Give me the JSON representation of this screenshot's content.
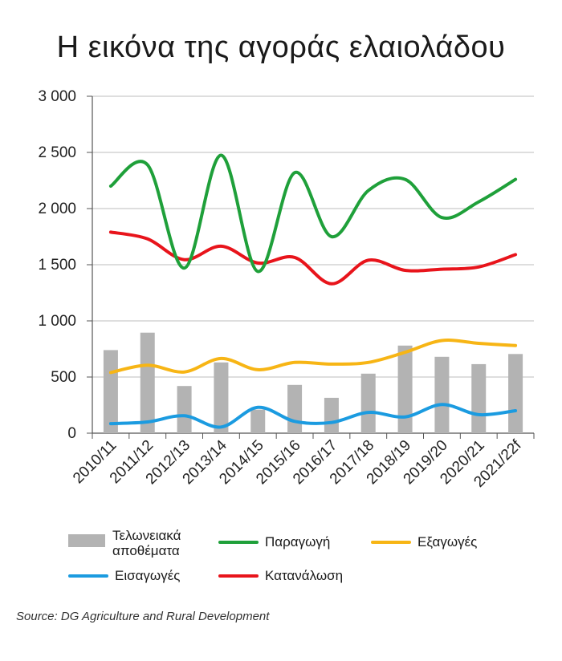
{
  "chart_data": {
    "type": "bar+line",
    "title": "Η εικόνα της αγοράς ελαιολάδου",
    "categories": [
      "2010/11",
      "2011/12",
      "2012/13",
      "2013/14",
      "2014/15",
      "2015/16",
      "2016/17",
      "2017/18",
      "2018/19",
      "2019/20",
      "2020/21",
      "2021/22f"
    ],
    "y_ticks": [
      "3 000",
      "2 500",
      "2 000",
      "1 500",
      "1 000",
      "500",
      "0"
    ],
    "y_tick_values": [
      3000,
      2500,
      2000,
      1500,
      1000,
      500,
      0
    ],
    "ylim": [
      0,
      3000
    ],
    "grid": true,
    "bar_series": {
      "name": "Τελωνειακά αποθέματα",
      "color": "#b3b3b3",
      "values": [
        740,
        895,
        420,
        630,
        210,
        430,
        315,
        530,
        780,
        680,
        615,
        705
      ]
    },
    "series": [
      {
        "name": "Παραγωγή",
        "color": "#1fa03a",
        "values": [
          2200,
          2390,
          1470,
          2475,
          1440,
          2320,
          1750,
          2160,
          2260,
          1920,
          2060,
          2260
        ]
      },
      {
        "name": "Εξαγωγές",
        "color": "#f7b515",
        "values": [
          540,
          605,
          545,
          665,
          565,
          630,
          615,
          630,
          720,
          825,
          800,
          780
        ]
      },
      {
        "name": "Εισαγωγές",
        "color": "#1b9be0",
        "values": [
          85,
          100,
          155,
          55,
          230,
          105,
          95,
          185,
          145,
          255,
          165,
          200
        ]
      },
      {
        "name": "Κατανάλωση",
        "color": "#e8141b",
        "values": [
          1790,
          1730,
          1545,
          1665,
          1515,
          1565,
          1330,
          1540,
          1450,
          1460,
          1480,
          1590
        ]
      }
    ],
    "legend": {
      "stocks_line1": "Τελωνειακά",
      "stocks_line2": "αποθέματα",
      "production": "Παραγωγή",
      "exports": "Εξαγωγές",
      "imports": "Εισαγωγές",
      "consumption": "Κατανάλωση",
      "placement": "bottom"
    },
    "source": "Source: DG Agriculture and Rural Development"
  }
}
